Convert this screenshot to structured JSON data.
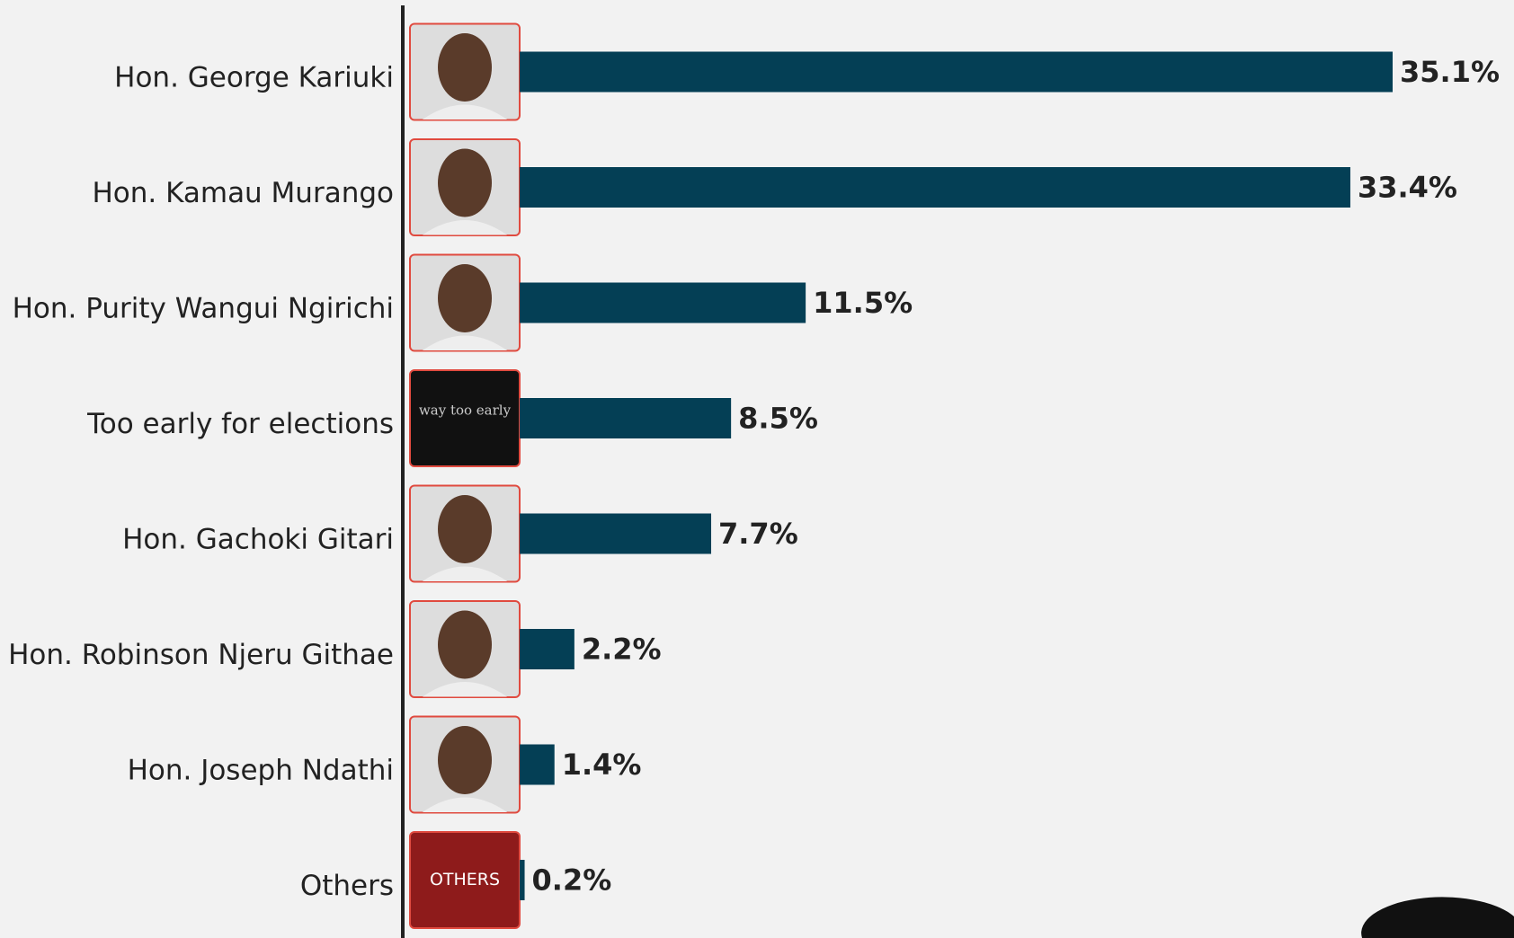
{
  "chart_data": {
    "type": "bar",
    "orientation": "horizontal",
    "categories": [
      "Hon. George Kariuki",
      "Hon. Kamau Murango",
      "Hon. Purity Wangui Ngirichi",
      "Too early for elections",
      "Hon. Gachoki Gitari",
      "Hon. Robinson Njeru Githae",
      "Hon. Joseph Ndathi",
      "Others"
    ],
    "values": [
      35.1,
      33.4,
      11.5,
      8.5,
      7.7,
      2.2,
      1.4,
      0.2
    ],
    "value_labels": [
      "35.1%",
      "33.4%",
      "11.5%",
      "8.5%",
      "7.7%",
      "2.2%",
      "1.4%",
      "0.2%"
    ],
    "color": "#043f55",
    "annotations": [
      "way too early",
      "OTHERS"
    ]
  }
}
